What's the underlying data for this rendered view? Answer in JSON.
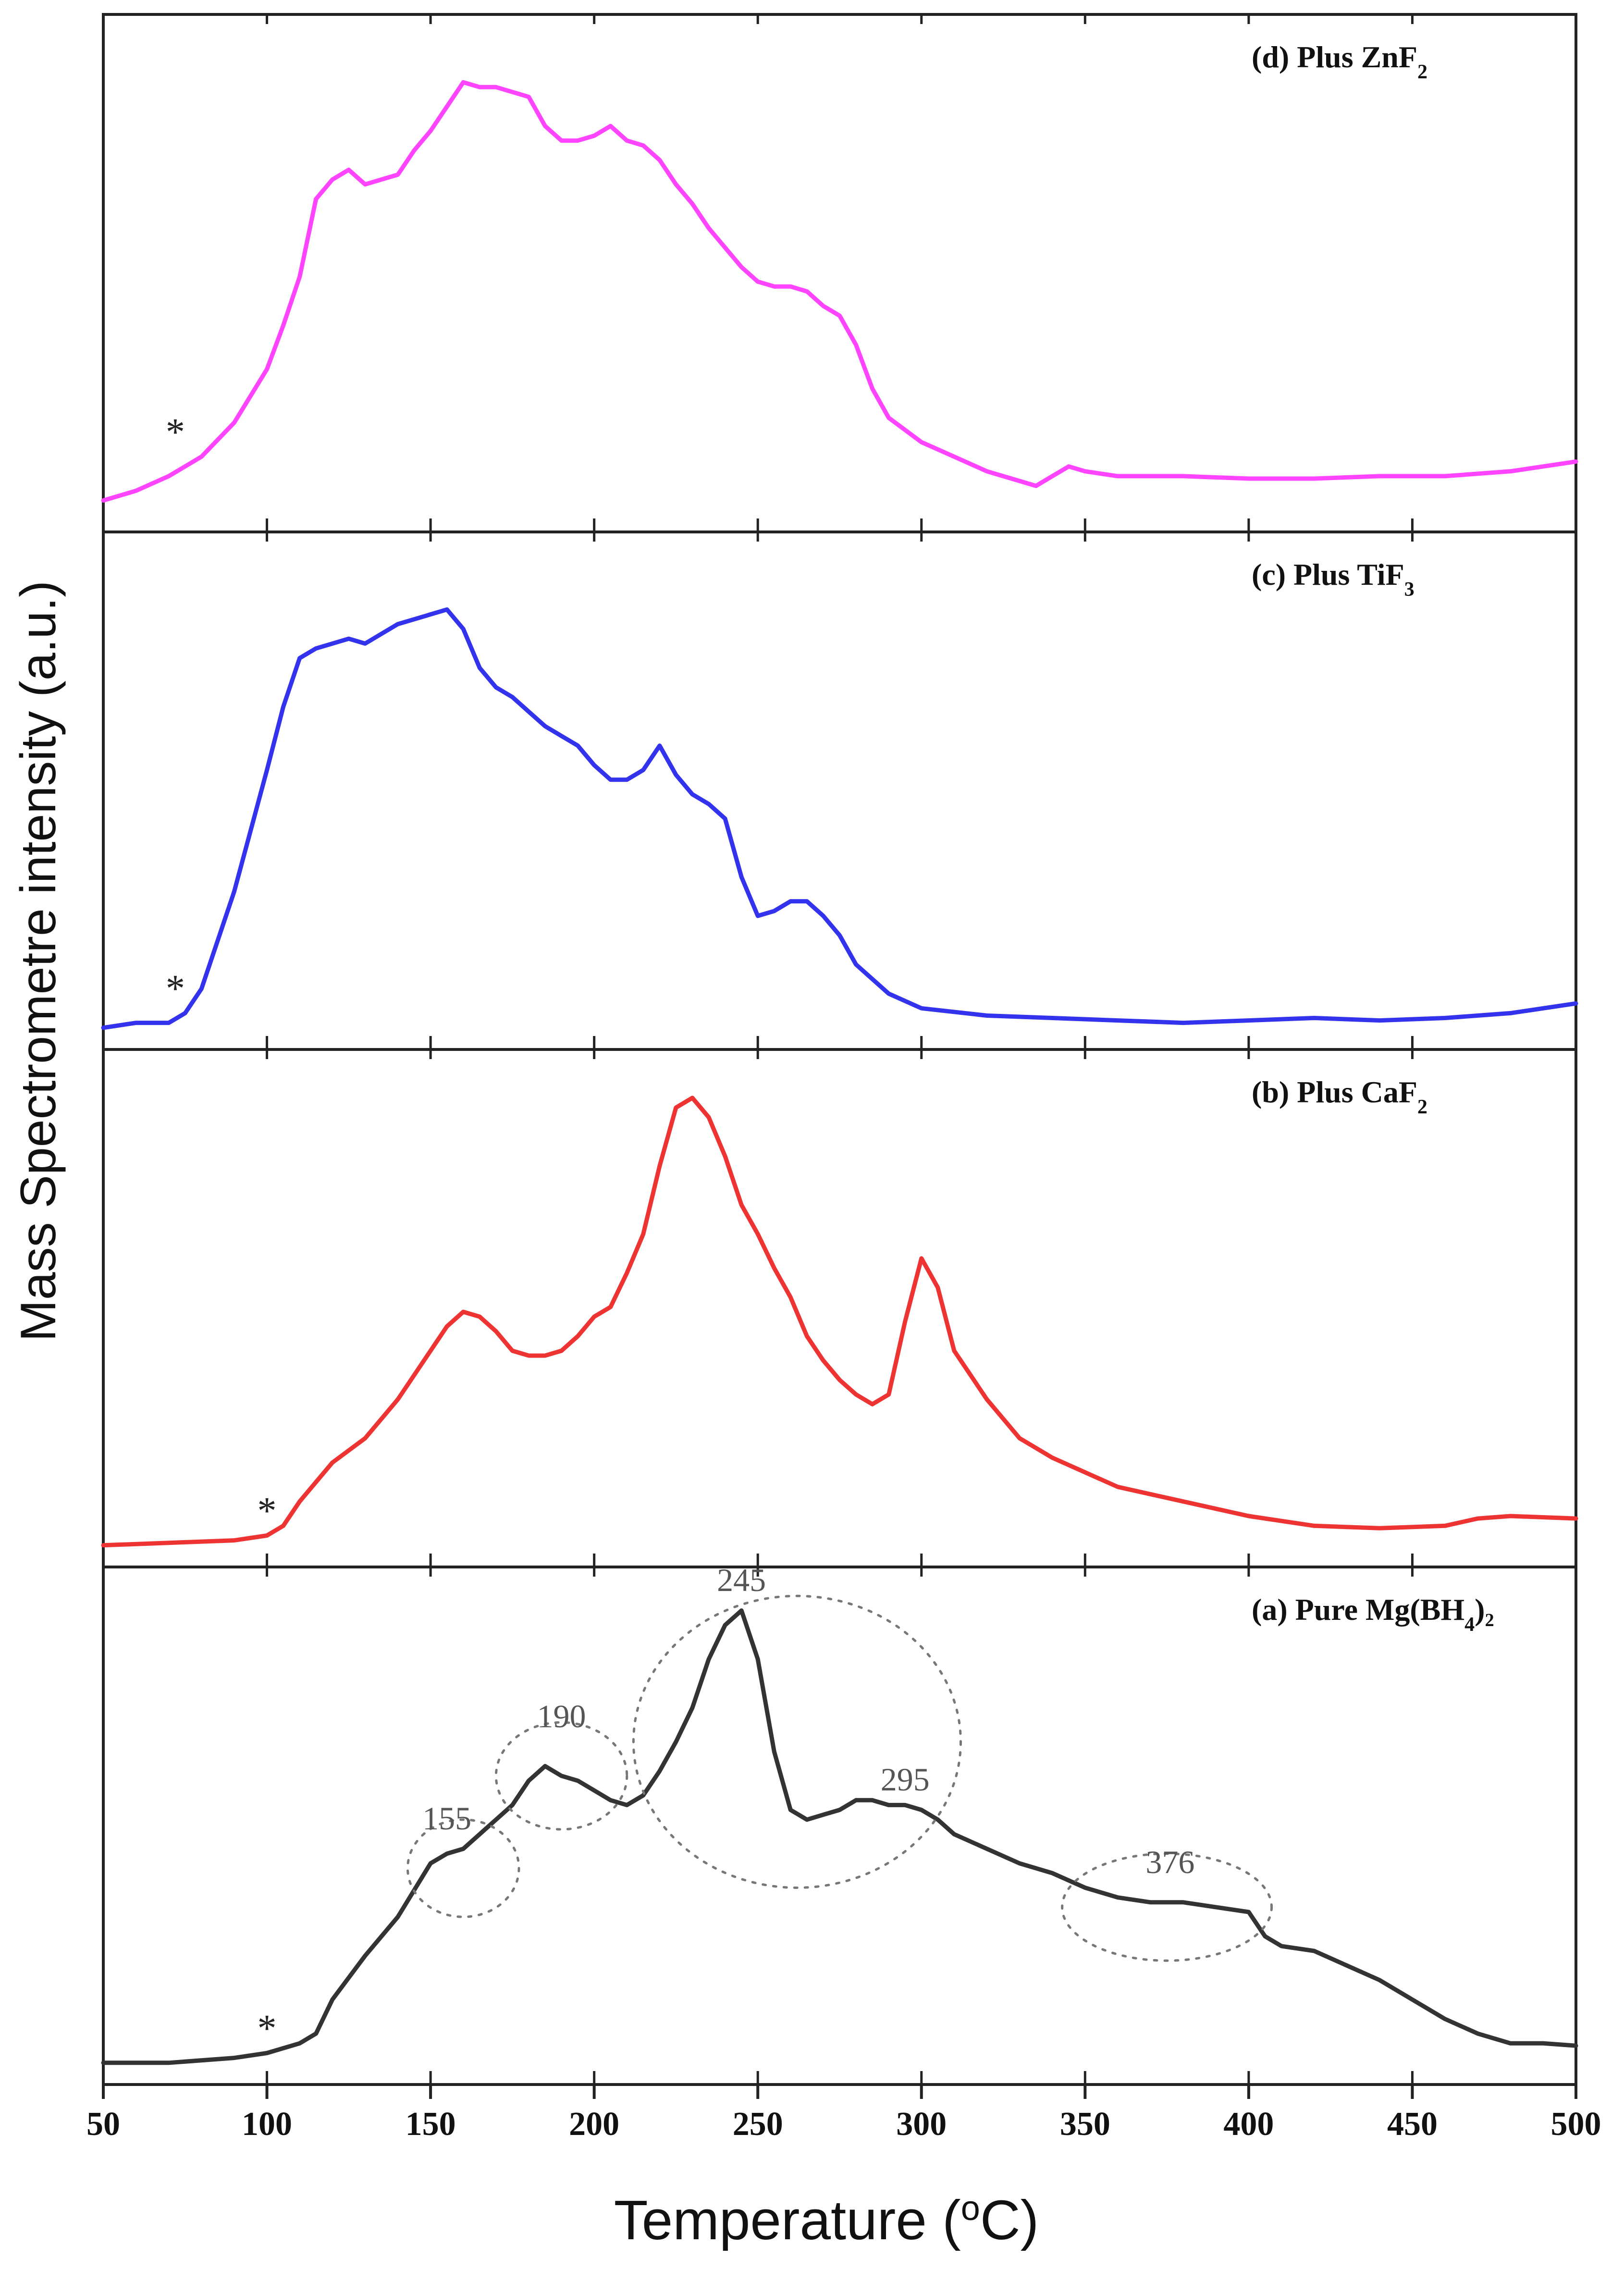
{
  "chart_data": {
    "type": "line",
    "xlabel": "Temperature (°C)",
    "xlabel_parts": {
      "prefix": "Temperature (",
      "superscript": "o",
      "suffix": "C)"
    },
    "ylabel": "Mass Spectrometre intensity (a.u.)",
    "xlim": [
      50,
      500
    ],
    "ylim": [
      0,
      1
    ],
    "x_ticks": [
      50,
      100,
      150,
      200,
      250,
      300,
      350,
      400,
      450,
      500
    ],
    "x_tick_labels": [
      "50",
      "100",
      "150",
      "200",
      "250",
      "300",
      "350",
      "400",
      "450",
      "500"
    ],
    "colors": {
      "d": "#ff44ff",
      "c": "#3333ee",
      "b": "#ee3333",
      "a": "#333333"
    },
    "panels": [
      {
        "id": "d",
        "label": {
          "main": "(d) Plus ZnF",
          "sub": "2",
          "tail": ""
        },
        "color": "#ff44ff",
        "asterisk_x": 72,
        "x": [
          50,
          60,
          70,
          80,
          90,
          100,
          105,
          110,
          115,
          120,
          125,
          130,
          135,
          140,
          145,
          150,
          155,
          160,
          165,
          170,
          175,
          180,
          185,
          190,
          195,
          200,
          205,
          210,
          215,
          220,
          225,
          230,
          235,
          240,
          245,
          250,
          255,
          260,
          265,
          270,
          275,
          280,
          285,
          290,
          300,
          310,
          320,
          330,
          335,
          340,
          345,
          350,
          360,
          380,
          400,
          420,
          440,
          460,
          480,
          500
        ],
        "y": [
          0.04,
          0.06,
          0.09,
          0.13,
          0.2,
          0.31,
          0.4,
          0.5,
          0.66,
          0.7,
          0.72,
          0.69,
          0.7,
          0.71,
          0.76,
          0.8,
          0.85,
          0.9,
          0.89,
          0.89,
          0.88,
          0.87,
          0.81,
          0.78,
          0.78,
          0.79,
          0.81,
          0.78,
          0.77,
          0.74,
          0.69,
          0.65,
          0.6,
          0.56,
          0.52,
          0.49,
          0.48,
          0.48,
          0.47,
          0.44,
          0.42,
          0.36,
          0.27,
          0.21,
          0.16,
          0.13,
          0.1,
          0.08,
          0.07,
          0.09,
          0.11,
          0.1,
          0.09,
          0.09,
          0.085,
          0.085,
          0.09,
          0.09,
          0.1,
          0.12
        ]
      },
      {
        "id": "c",
        "label": {
          "main": "(c) Plus TiF",
          "sub": "3",
          "tail": ""
        },
        "color": "#3333ee",
        "asterisk_x": 72,
        "x": [
          50,
          60,
          70,
          75,
          80,
          90,
          100,
          105,
          110,
          115,
          120,
          125,
          130,
          140,
          150,
          155,
          160,
          165,
          170,
          175,
          180,
          185,
          190,
          195,
          200,
          205,
          210,
          215,
          220,
          225,
          230,
          235,
          240,
          245,
          250,
          255,
          260,
          265,
          270,
          275,
          280,
          290,
          300,
          320,
          340,
          360,
          380,
          400,
          420,
          440,
          460,
          480,
          500
        ],
        "y": [
          0.02,
          0.03,
          0.03,
          0.05,
          0.1,
          0.3,
          0.55,
          0.68,
          0.78,
          0.8,
          0.81,
          0.82,
          0.81,
          0.85,
          0.87,
          0.88,
          0.84,
          0.76,
          0.72,
          0.7,
          0.67,
          0.64,
          0.62,
          0.6,
          0.56,
          0.53,
          0.53,
          0.55,
          0.6,
          0.54,
          0.5,
          0.48,
          0.45,
          0.33,
          0.25,
          0.26,
          0.28,
          0.28,
          0.25,
          0.21,
          0.15,
          0.09,
          0.06,
          0.045,
          0.04,
          0.035,
          0.03,
          0.035,
          0.04,
          0.035,
          0.04,
          0.05,
          0.07
        ]
      },
      {
        "id": "b",
        "label": {
          "main": "(b) Plus CaF",
          "sub": "2",
          "tail": ""
        },
        "color": "#ee3333",
        "asterisk_x": 100,
        "x": [
          50,
          70,
          90,
          100,
          105,
          110,
          115,
          120,
          130,
          140,
          150,
          155,
          160,
          165,
          170,
          175,
          180,
          185,
          190,
          195,
          200,
          205,
          210,
          215,
          220,
          225,
          230,
          235,
          240,
          245,
          250,
          255,
          260,
          265,
          270,
          275,
          280,
          285,
          290,
          295,
          300,
          305,
          310,
          320,
          330,
          340,
          350,
          360,
          380,
          400,
          420,
          440,
          460,
          470,
          480,
          500
        ],
        "y": [
          0.02,
          0.025,
          0.03,
          0.04,
          0.06,
          0.11,
          0.15,
          0.19,
          0.24,
          0.32,
          0.42,
          0.47,
          0.5,
          0.49,
          0.46,
          0.42,
          0.41,
          0.41,
          0.42,
          0.45,
          0.49,
          0.51,
          0.58,
          0.66,
          0.8,
          0.92,
          0.94,
          0.9,
          0.82,
          0.72,
          0.66,
          0.59,
          0.53,
          0.45,
          0.4,
          0.36,
          0.33,
          0.31,
          0.33,
          0.48,
          0.61,
          0.55,
          0.42,
          0.32,
          0.24,
          0.2,
          0.17,
          0.14,
          0.11,
          0.08,
          0.06,
          0.055,
          0.06,
          0.075,
          0.08,
          0.075
        ]
      },
      {
        "id": "a",
        "label": {
          "main": "(a) Pure Mg(BH",
          "sub": "4",
          "tail": ")₂"
        },
        "color": "#333333",
        "asterisk_x": 100,
        "x": [
          50,
          70,
          90,
          100,
          110,
          115,
          120,
          130,
          140,
          150,
          155,
          160,
          165,
          170,
          175,
          180,
          185,
          190,
          195,
          200,
          205,
          210,
          215,
          220,
          225,
          230,
          235,
          240,
          245,
          250,
          255,
          260,
          265,
          270,
          275,
          280,
          285,
          290,
          295,
          300,
          305,
          310,
          320,
          330,
          340,
          350,
          360,
          370,
          380,
          390,
          400,
          405,
          410,
          420,
          430,
          440,
          450,
          460,
          470,
          480,
          490,
          500
        ],
        "y": [
          0.02,
          0.02,
          0.03,
          0.04,
          0.06,
          0.08,
          0.15,
          0.24,
          0.32,
          0.43,
          0.45,
          0.46,
          0.49,
          0.52,
          0.55,
          0.6,
          0.63,
          0.61,
          0.6,
          0.58,
          0.56,
          0.55,
          0.57,
          0.62,
          0.68,
          0.75,
          0.85,
          0.92,
          0.95,
          0.85,
          0.66,
          0.54,
          0.52,
          0.53,
          0.54,
          0.56,
          0.56,
          0.55,
          0.55,
          0.54,
          0.52,
          0.49,
          0.46,
          0.43,
          0.41,
          0.38,
          0.36,
          0.35,
          0.35,
          0.34,
          0.33,
          0.28,
          0.26,
          0.25,
          0.22,
          0.19,
          0.15,
          0.11,
          0.08,
          0.06,
          0.06,
          0.055
        ],
        "annotations": [
          {
            "text": "155",
            "x": 155,
            "y": 0.5,
            "ellipse": {
              "cx": 160,
              "cy": 0.42,
              "rx": 17,
              "ry": 0.1
            }
          },
          {
            "text": "190",
            "x": 190,
            "y": 0.71,
            "ellipse": {
              "cx": 190,
              "cy": 0.61,
              "rx": 20,
              "ry": 0.11
            }
          },
          {
            "text": "245",
            "x": 245,
            "y": 0.99,
            "ellipse": {
              "cx": 262,
              "cy": 0.68,
              "rx": 50,
              "ry": 0.3
            }
          },
          {
            "text": "295",
            "x": 295,
            "y": 0.58,
            "ellipse": null
          },
          {
            "text": "376",
            "x": 376,
            "y": 0.41,
            "ellipse": {
              "cx": 375,
              "cy": 0.34,
              "rx": 32,
              "ry": 0.11
            }
          }
        ]
      }
    ]
  }
}
